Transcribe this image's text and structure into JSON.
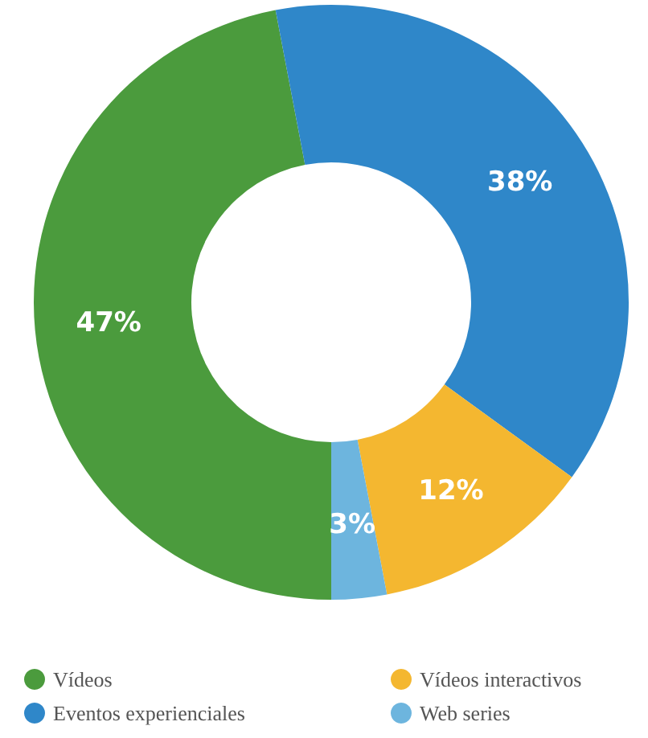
{
  "chart_data": {
    "type": "donut",
    "categories": [
      "Vídeos",
      "Eventos experienciales",
      "Vídeos interactivos",
      "Web series"
    ],
    "values": [
      47,
      38,
      12,
      3
    ],
    "colors": [
      "#4b9b3d",
      "#2f87c9",
      "#f4b730",
      "#6db5de"
    ],
    "value_labels": [
      "47%",
      "38%",
      "12%",
      "3%"
    ],
    "legend": "bottom"
  }
}
